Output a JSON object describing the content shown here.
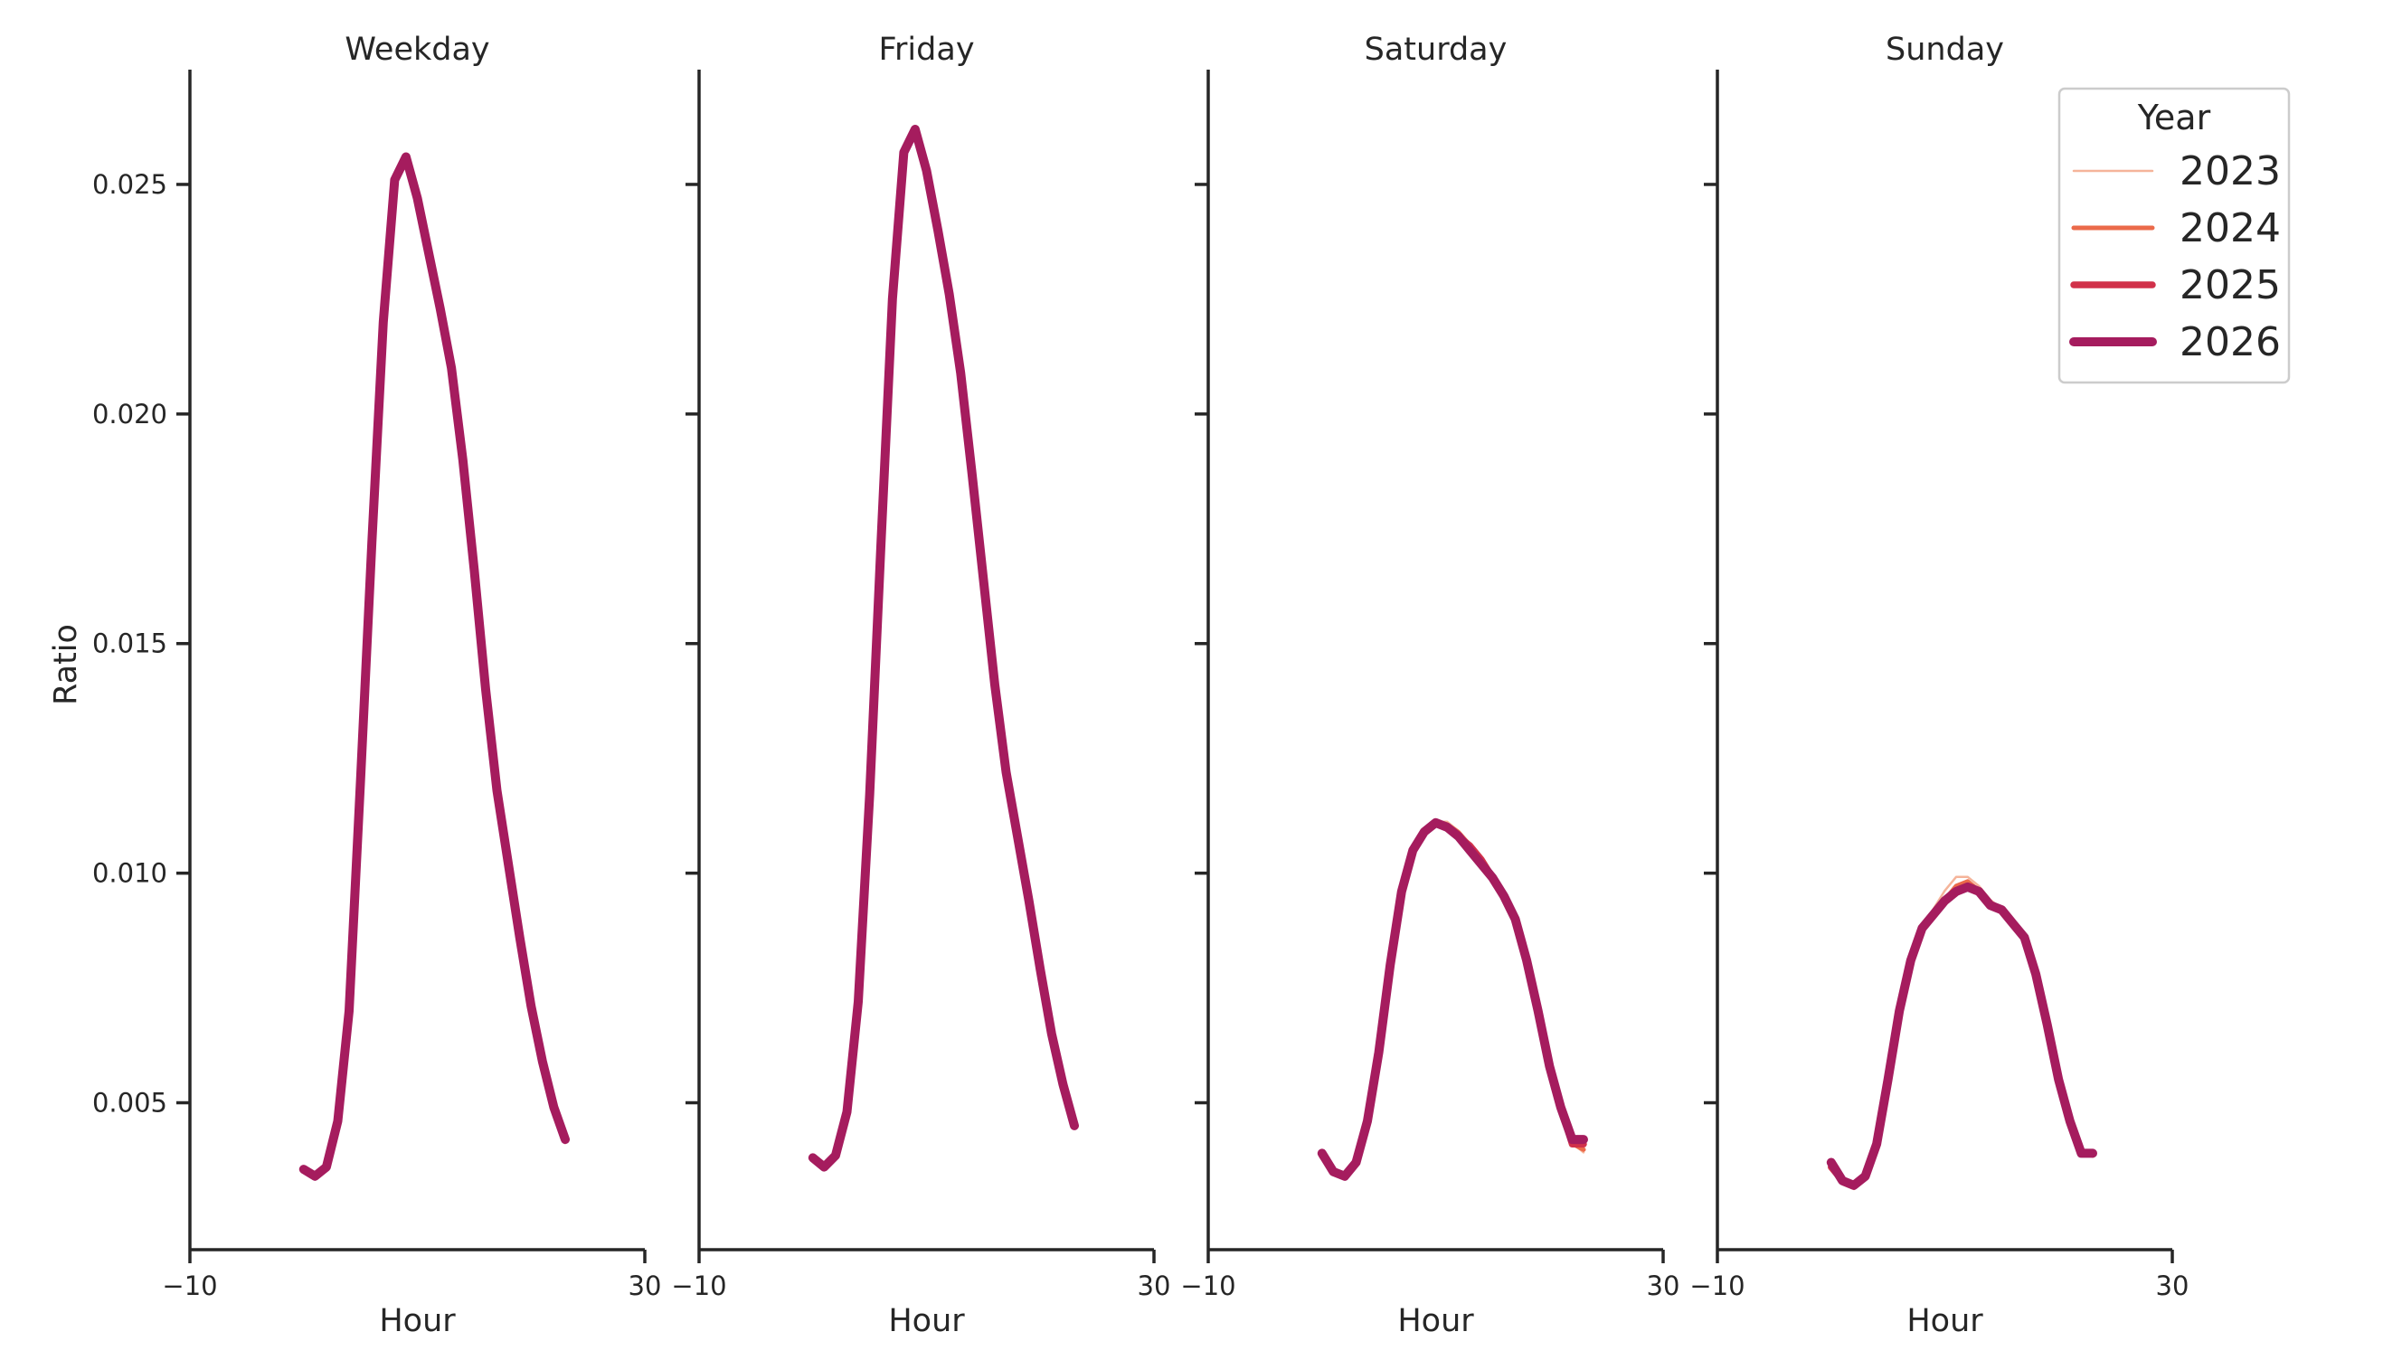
{
  "chart_data": {
    "type": "line",
    "layout": "facet-columns",
    "ylabel": "Ratio",
    "xlabel": "Hour",
    "xlim": [
      -10,
      30
    ],
    "x_ticks": [
      -10,
      30
    ],
    "x_tick_labels": [
      "−10",
      "30"
    ],
    "ylim": [
      0.0018,
      0.0275
    ],
    "y_ticks": [
      0.005,
      0.01,
      0.015,
      0.02,
      0.025
    ],
    "y_tick_labels": [
      "0.005",
      "0.010",
      "0.015",
      "0.020",
      "0.025"
    ],
    "y_axis_shared": true,
    "grid": false,
    "legend": {
      "title": "Year",
      "placement": "top-right",
      "entries": [
        "2023",
        "2024",
        "2025",
        "2026"
      ]
    },
    "series_style": [
      {
        "name": "2023",
        "color": "#f5b49a",
        "width": 2.5
      },
      {
        "name": "2024",
        "color": "#eb6a4a",
        "width": 5
      },
      {
        "name": "2025",
        "color": "#d1314a",
        "width": 7.5
      },
      {
        "name": "2026",
        "color": "#a51c5e",
        "width": 10
      }
    ],
    "x": [
      0,
      1,
      2,
      3,
      4,
      5,
      6,
      7,
      8,
      9,
      10,
      11,
      12,
      13,
      14,
      15,
      16,
      17,
      18,
      19,
      20,
      21,
      22,
      23
    ],
    "panels": [
      {
        "title": "Weekday",
        "series": [
          {
            "name": "2023",
            "values": [
              0.00358,
              0.00342,
              0.00362,
              0.00462,
              0.00702,
              0.01202,
              0.01722,
              0.02202,
              0.02512,
              0.02562,
              0.02472,
              0.02352,
              0.02232,
              0.02102,
              0.01902,
              0.01662,
              0.01402,
              0.01182,
              0.01022,
              0.00862,
              0.00712,
              0.00592,
              0.00492,
              0.00412
            ]
          },
          {
            "name": "2024",
            "values": [
              0.00357,
              0.00341,
              0.00361,
              0.00461,
              0.00701,
              0.01201,
              0.01721,
              0.02201,
              0.02511,
              0.02561,
              0.02471,
              0.02351,
              0.02231,
              0.02101,
              0.01901,
              0.01661,
              0.01401,
              0.01181,
              0.01021,
              0.00861,
              0.00711,
              0.00591,
              0.00491,
              0.00416
            ]
          },
          {
            "name": "2025",
            "values": [
              0.00356,
              0.0034,
              0.0036,
              0.0046,
              0.007,
              0.012,
              0.0172,
              0.022,
              0.0251,
              0.0256,
              0.0247,
              0.0235,
              0.0223,
              0.021,
              0.019,
              0.0166,
              0.014,
              0.0118,
              0.0102,
              0.0086,
              0.0071,
              0.0059,
              0.0049,
              0.00418
            ]
          },
          {
            "name": "2026",
            "values": [
              0.00355,
              0.0034,
              0.0036,
              0.0046,
              0.007,
              0.012,
              0.0172,
              0.022,
              0.0251,
              0.0256,
              0.0247,
              0.0235,
              0.0223,
              0.021,
              0.019,
              0.0166,
              0.014,
              0.0118,
              0.0102,
              0.0086,
              0.0071,
              0.0059,
              0.0049,
              0.0042
            ]
          }
        ]
      },
      {
        "title": "Friday",
        "series": [
          {
            "name": "2023",
            "values": [
              0.00382,
              0.00362,
              0.00387,
              0.00482,
              0.00722,
              0.01172,
              0.01722,
              0.02252,
              0.02572,
              0.02622,
              0.02532,
              0.02402,
              0.02262,
              0.02092,
              0.01872,
              0.01642,
              0.01412,
              0.01222,
              0.01082,
              0.00942,
              0.00792,
              0.00652,
              0.00542,
              0.00447
            ]
          },
          {
            "name": "2024",
            "values": [
              0.00381,
              0.00361,
              0.00386,
              0.00481,
              0.00721,
              0.01171,
              0.01721,
              0.02251,
              0.02571,
              0.02621,
              0.02531,
              0.02401,
              0.02261,
              0.02091,
              0.01871,
              0.01641,
              0.01411,
              0.01221,
              0.01081,
              0.00941,
              0.00791,
              0.00651,
              0.00541,
              0.00449
            ]
          },
          {
            "name": "2025",
            "values": [
              0.0038,
              0.0036,
              0.00385,
              0.0048,
              0.0072,
              0.0117,
              0.0172,
              0.0225,
              0.0257,
              0.0262,
              0.0253,
              0.024,
              0.0226,
              0.0209,
              0.0187,
              0.0164,
              0.0141,
              0.0122,
              0.0108,
              0.0094,
              0.0079,
              0.0065,
              0.0054,
              0.0045
            ]
          },
          {
            "name": "2026",
            "values": [
              0.0038,
              0.0036,
              0.00385,
              0.0048,
              0.0072,
              0.0117,
              0.0172,
              0.0225,
              0.0257,
              0.0262,
              0.0253,
              0.024,
              0.0226,
              0.0209,
              0.0187,
              0.0164,
              0.0141,
              0.0122,
              0.0108,
              0.0094,
              0.0079,
              0.0065,
              0.0054,
              0.0045
            ]
          }
        ]
      },
      {
        "title": "Saturday",
        "series": [
          {
            "name": "2023",
            "values": [
              0.00388,
              0.00352,
              0.00342,
              0.00372,
              0.00462,
              0.00612,
              0.00802,
              0.00962,
              0.01052,
              0.01092,
              0.01112,
              0.01112,
              0.01092,
              0.01062,
              0.01032,
              0.00992,
              0.00952,
              0.00902,
              0.00812,
              0.00702,
              0.00582,
              0.00492,
              0.00412,
              0.00392
            ]
          },
          {
            "name": "2024",
            "values": [
              0.00386,
              0.00351,
              0.00341,
              0.00371,
              0.00461,
              0.00611,
              0.00801,
              0.00961,
              0.01051,
              0.01091,
              0.01111,
              0.01106,
              0.01089,
              0.01061,
              0.01031,
              0.00991,
              0.00951,
              0.00901,
              0.00811,
              0.00701,
              0.00581,
              0.00491,
              0.00411,
              0.00398
            ]
          },
          {
            "name": "2025",
            "values": [
              0.00385,
              0.0035,
              0.0034,
              0.0037,
              0.0046,
              0.0061,
              0.008,
              0.0096,
              0.0105,
              0.0109,
              0.0111,
              0.011,
              0.0108,
              0.0106,
              0.0103,
              0.0099,
              0.0095,
              0.009,
              0.0081,
              0.007,
              0.0058,
              0.0049,
              0.0041,
              0.0041
            ]
          },
          {
            "name": "2026",
            "values": [
              0.0039,
              0.0035,
              0.0034,
              0.0037,
              0.0046,
              0.0061,
              0.008,
              0.0096,
              0.0105,
              0.0109,
              0.0111,
              0.011,
              0.0108,
              0.0105,
              0.0102,
              0.0099,
              0.0095,
              0.009,
              0.0081,
              0.007,
              0.0058,
              0.0049,
              0.0042,
              0.0042
            ]
          }
        ]
      },
      {
        "title": "Sunday",
        "series": [
          {
            "name": "2023",
            "values": [
              0.00362,
              0.00322,
              0.00312,
              0.00332,
              0.00412,
              0.00552,
              0.00712,
              0.00822,
              0.00882,
              0.00922,
              0.00962,
              0.00992,
              0.00992,
              0.00972,
              0.00942,
              0.00922,
              0.00892,
              0.00862,
              0.00782,
              0.00672,
              0.00552,
              0.00462,
              0.00392,
              0.00382
            ]
          },
          {
            "name": "2024",
            "values": [
              0.00361,
              0.00326,
              0.00316,
              0.00336,
              0.00412,
              0.00552,
              0.00702,
              0.00812,
              0.00882,
              0.00912,
              0.00942,
              0.00972,
              0.00982,
              0.00962,
              0.00932,
              0.00917,
              0.00892,
              0.00862,
              0.00782,
              0.00672,
              0.00552,
              0.00462,
              0.00392,
              0.00386
            ]
          },
          {
            "name": "2025",
            "values": [
              0.0036,
              0.0033,
              0.0032,
              0.0034,
              0.0041,
              0.0055,
              0.007,
              0.0081,
              0.0088,
              0.0091,
              0.0094,
              0.0096,
              0.0097,
              0.0096,
              0.0093,
              0.0092,
              0.0089,
              0.0086,
              0.0078,
              0.0067,
              0.0055,
              0.0046,
              0.0039,
              0.0039
            ]
          },
          {
            "name": "2026",
            "values": [
              0.0037,
              0.0033,
              0.0032,
              0.0034,
              0.0041,
              0.0055,
              0.007,
              0.0081,
              0.0088,
              0.0091,
              0.0094,
              0.0096,
              0.0097,
              0.0096,
              0.0093,
              0.0092,
              0.0089,
              0.0086,
              0.0078,
              0.0067,
              0.0055,
              0.0046,
              0.0039,
              0.0039
            ]
          }
        ]
      }
    ]
  }
}
